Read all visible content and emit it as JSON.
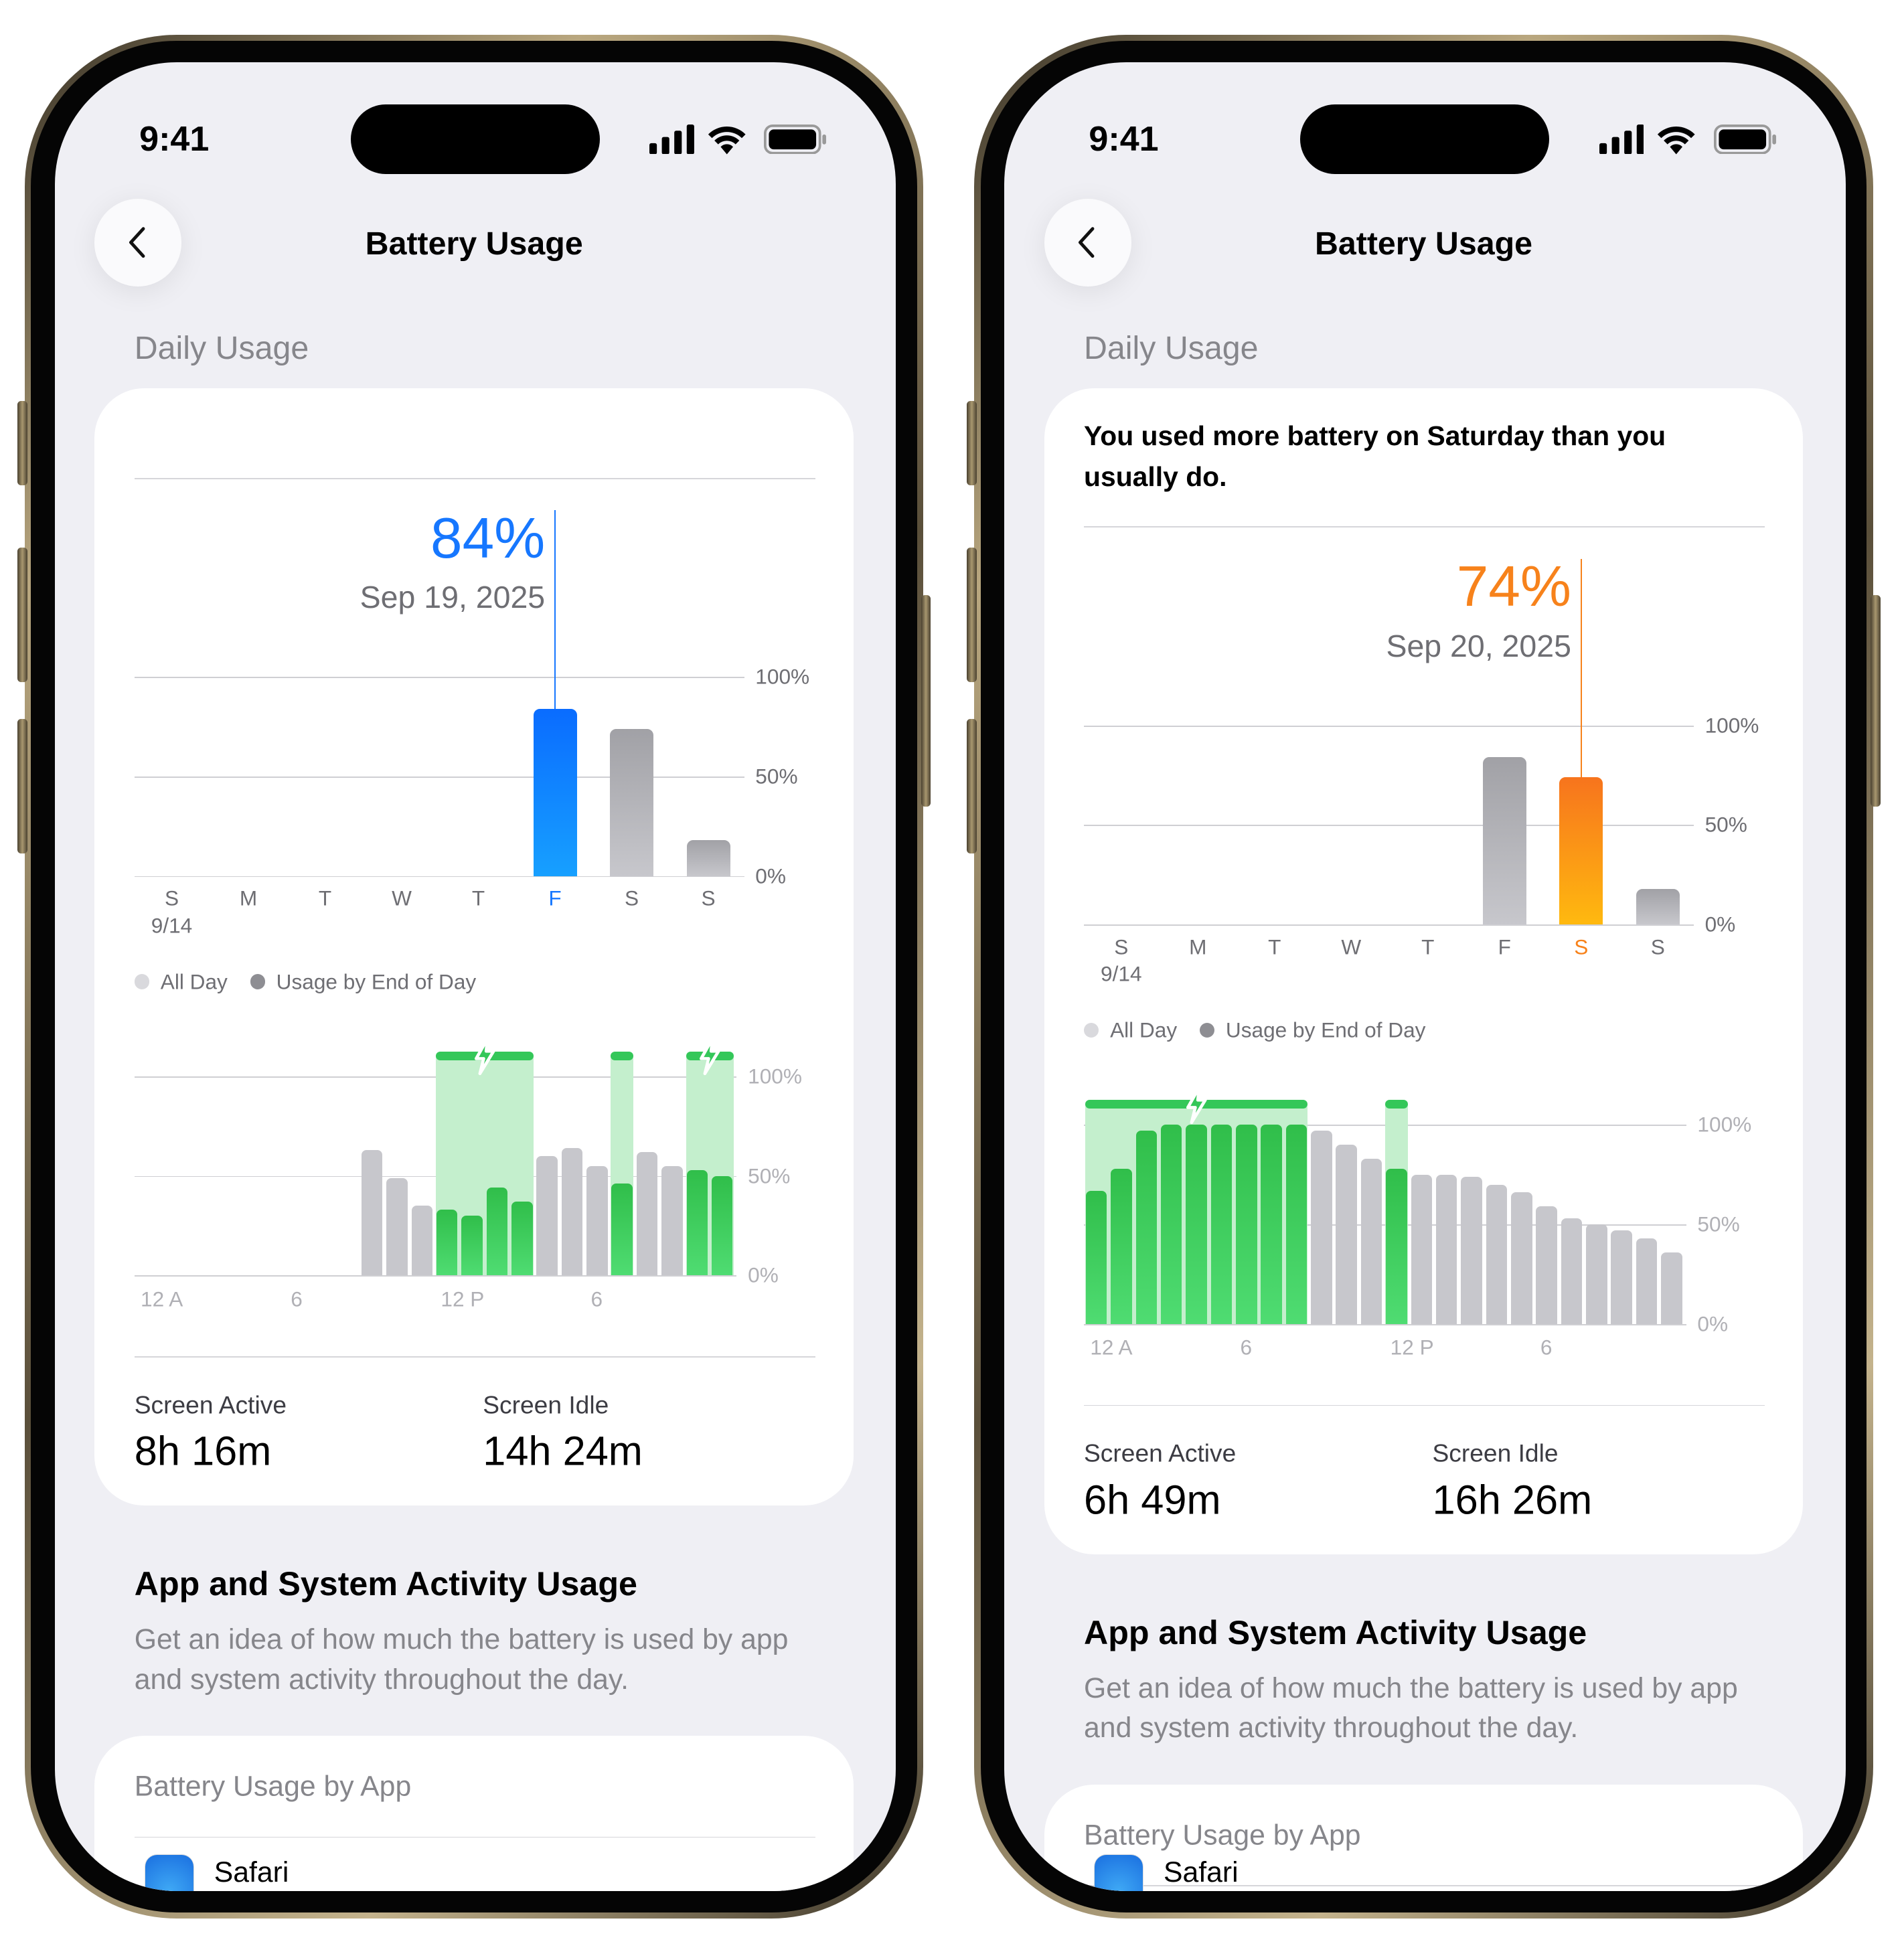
{
  "phones": [
    {
      "status_time": "9:41",
      "title": "Battery Usage",
      "section_title": "Daily Usage",
      "alert": "",
      "screen_active_label": "Screen Active",
      "screen_active_value": "8h 16m",
      "screen_idle_label": "Screen Idle",
      "screen_idle_value": "14h 24m",
      "activity_title": "App and System Activity Usage",
      "activity_description": "Get an idea of how much the battery is used by app and system activity throughout the day.",
      "by_app_title": "Battery Usage by App",
      "first_app": "Safari"
    },
    {
      "status_time": "9:41",
      "title": "Battery Usage",
      "section_title": "Daily Usage",
      "alert": "You used more battery on Saturday than you usually do.",
      "screen_active_label": "Screen Active",
      "screen_active_value": "6h 49m",
      "screen_idle_label": "Screen Idle",
      "screen_idle_value": "16h 26m",
      "activity_title": "App and System Activity Usage",
      "activity_description": "Get an idea of how much the battery is used by app and system activity throughout the day.",
      "by_app_title": "Battery Usage by App",
      "first_app": "Safari"
    }
  ],
  "chart_data": [
    {
      "type": "bar",
      "selected_value": "84%",
      "selected_date": "Sep 19, 2025",
      "selected_index": 5,
      "highlight_color": "#1677ff",
      "categories": [
        "S",
        "M",
        "T",
        "W",
        "T",
        "F",
        "S",
        "S"
      ],
      "first_date": "9/14",
      "values": [
        null,
        null,
        null,
        null,
        null,
        84,
        74,
        18
      ],
      "ylim": [
        0,
        100
      ],
      "yticks": [
        "100%",
        "50%",
        "0%"
      ],
      "legend": [
        "All Day",
        "Usage by End of Day"
      ],
      "grid": true
    },
    {
      "type": "bar",
      "x": [
        0,
        1,
        2,
        3,
        4,
        5,
        6,
        7,
        8,
        9,
        10,
        11,
        12,
        13,
        14,
        15,
        16,
        17,
        18,
        19,
        20,
        21,
        22,
        23
      ],
      "values": [
        null,
        null,
        null,
        null,
        null,
        null,
        null,
        null,
        null,
        63,
        49,
        35,
        33,
        30,
        44,
        37,
        60,
        64,
        55,
        46,
        62,
        55,
        53,
        50
      ],
      "charging": [
        false,
        false,
        false,
        false,
        false,
        false,
        false,
        false,
        false,
        false,
        false,
        false,
        true,
        true,
        true,
        true,
        false,
        false,
        false,
        true,
        false,
        false,
        true,
        true
      ],
      "xticks": [
        "12 A",
        "6",
        "12 P",
        "6"
      ],
      "yticks": [
        "100%",
        "50%",
        "0%"
      ],
      "ylim": [
        0,
        100
      ],
      "colors": {
        "charging": "#34c759",
        "normal": "#c7c7cc"
      },
      "grid": true
    },
    {
      "type": "bar",
      "selected_value": "74%",
      "selected_date": "Sep 20, 2025",
      "selected_index": 6,
      "highlight_color": "#f7821b",
      "categories": [
        "S",
        "M",
        "T",
        "W",
        "T",
        "F",
        "S",
        "S"
      ],
      "first_date": "9/14",
      "values": [
        null,
        null,
        null,
        null,
        null,
        84,
        74,
        18
      ],
      "ylim": [
        0,
        100
      ],
      "yticks": [
        "100%",
        "50%",
        "0%"
      ],
      "legend": [
        "All Day",
        "Usage by End of Day"
      ],
      "grid": true
    },
    {
      "type": "bar",
      "x": [
        0,
        1,
        2,
        3,
        4,
        5,
        6,
        7,
        8,
        9,
        10,
        11,
        12,
        13,
        14,
        15,
        16,
        17,
        18,
        19,
        20,
        21,
        22,
        23
      ],
      "values": [
        67,
        78,
        97,
        100,
        100,
        100,
        100,
        100,
        100,
        97,
        90,
        83,
        78,
        75,
        75,
        74,
        70,
        66,
        59,
        53,
        50,
        47,
        43,
        36
      ],
      "charging": [
        true,
        true,
        true,
        true,
        true,
        true,
        true,
        true,
        true,
        false,
        false,
        false,
        true,
        false,
        false,
        false,
        false,
        false,
        false,
        false,
        false,
        false,
        false,
        false
      ],
      "xticks": [
        "12 A",
        "6",
        "12 P",
        "6"
      ],
      "yticks": [
        "100%",
        "50%",
        "0%"
      ],
      "ylim": [
        0,
        100
      ],
      "colors": {
        "charging": "#34c759",
        "normal": "#c7c7cc"
      },
      "grid": true
    }
  ]
}
